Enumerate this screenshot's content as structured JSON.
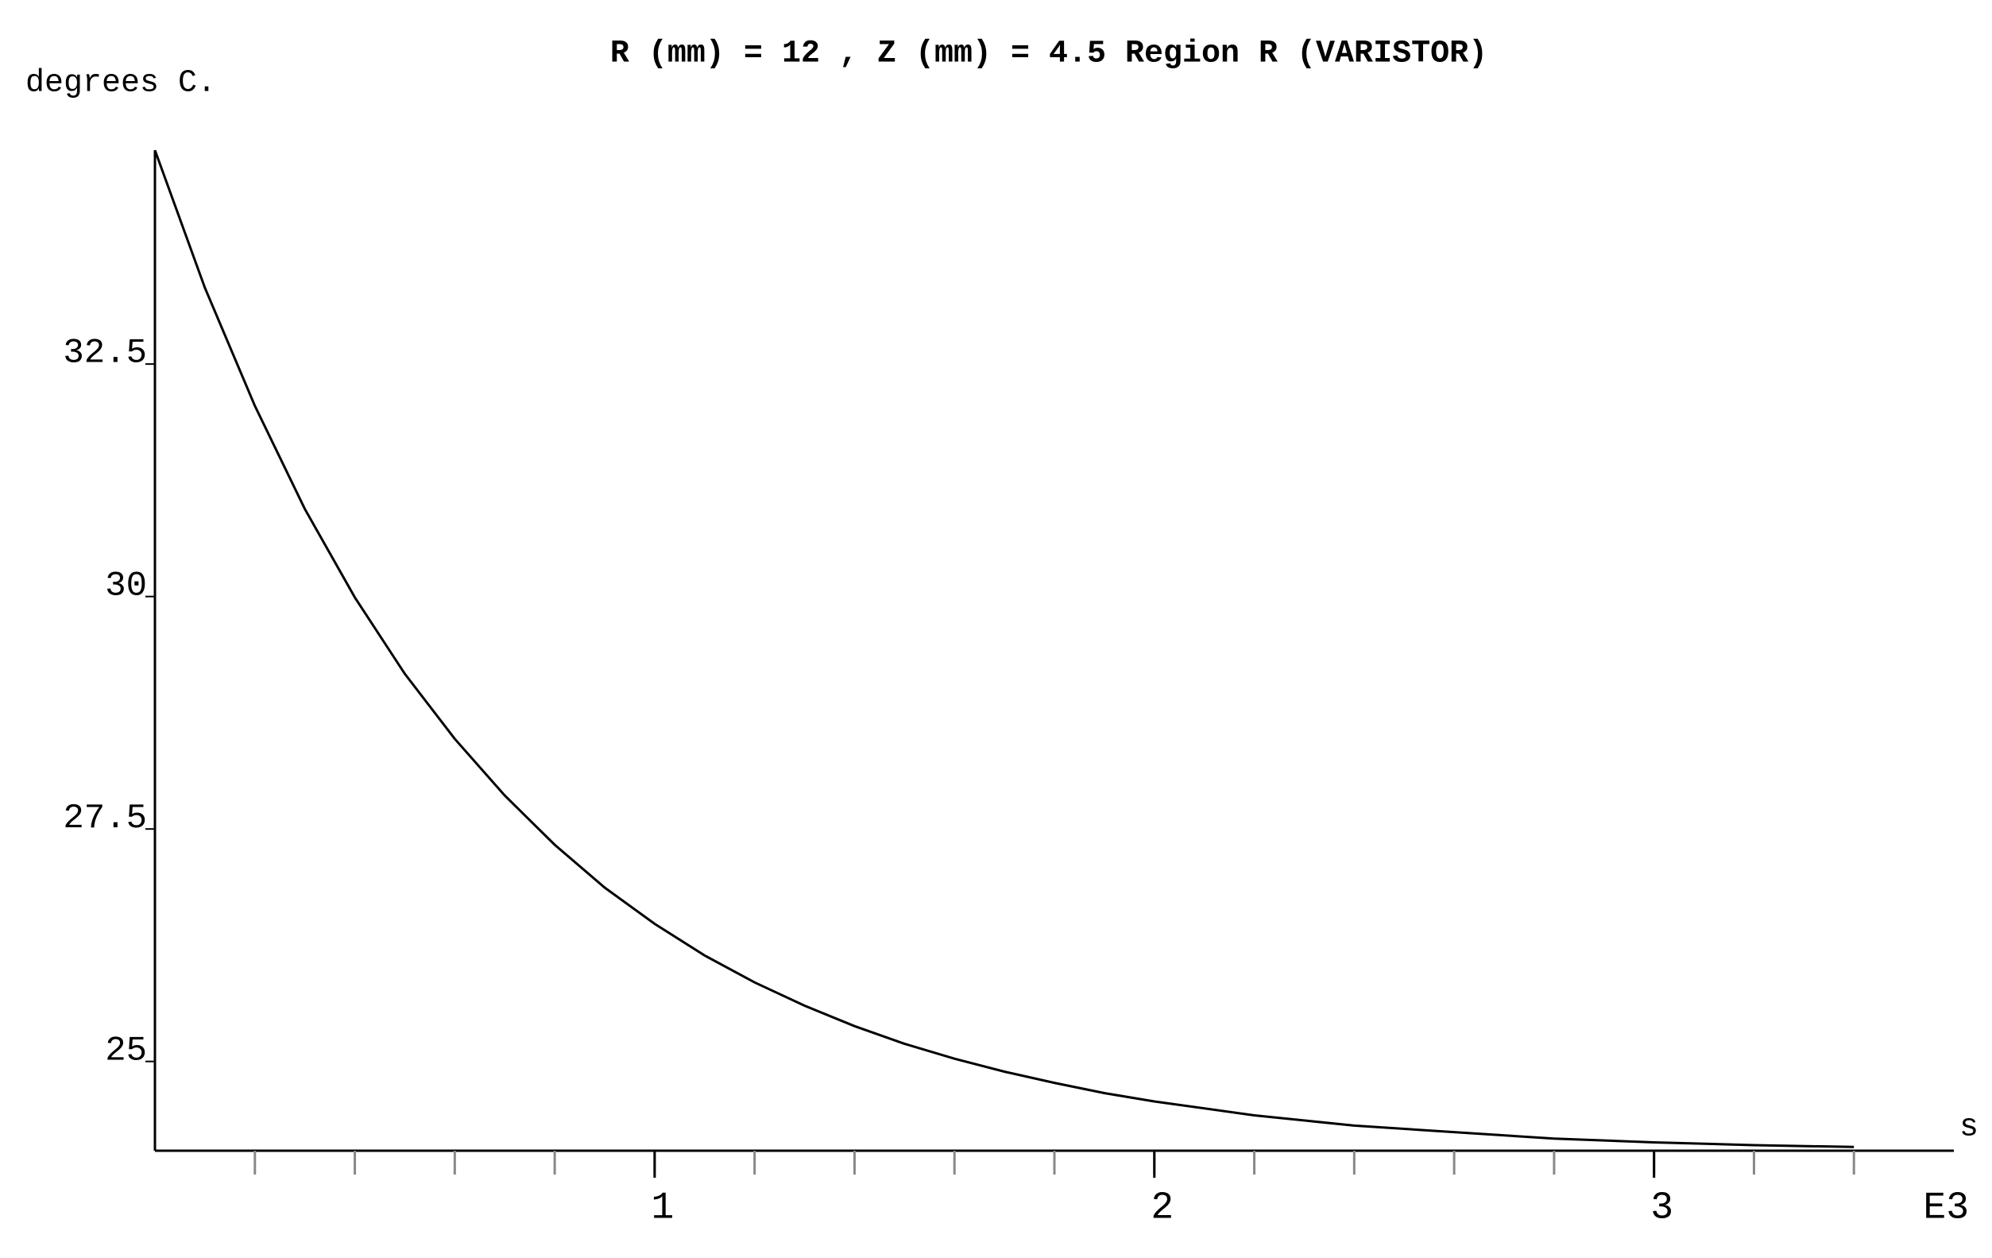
{
  "chart_data": {
    "type": "line",
    "title": "R (mm) = 12 , Z (mm) = 4.5  Region R (VARISTOR)",
    "y_label": "degrees C.",
    "x_label": "s",
    "x_scale_label": "E3",
    "x": [
      0,
      0.1,
      0.2,
      0.3,
      0.4,
      0.5,
      0.6,
      0.7,
      0.8,
      0.9,
      1.0,
      1.1,
      1.2,
      1.3,
      1.4,
      1.5,
      1.6,
      1.7,
      1.8,
      1.9,
      2.0,
      2.2,
      2.4,
      2.6,
      2.8,
      3.0,
      3.2,
      3.4
    ],
    "series": [
      {
        "color": "#000000",
        "values": [
          34.8,
          33.32,
          32.05,
          30.94,
          29.99,
          29.17,
          28.47,
          27.86,
          27.33,
          26.87,
          26.48,
          26.14,
          25.85,
          25.6,
          25.38,
          25.19,
          25.03,
          24.89,
          24.77,
          24.66,
          24.57,
          24.42,
          24.31,
          24.24,
          24.17,
          24.13,
          24.1,
          24.08
        ]
      }
    ],
    "xlim": [
      0,
      3.6
    ],
    "ylim": [
      24.04,
      34.8
    ],
    "xticks": [
      1,
      2,
      3
    ],
    "x_minor_ticks": [
      0.2,
      0.4,
      0.6,
      0.8,
      1,
      1.2,
      1.4,
      1.6,
      1.8,
      2,
      2.2,
      2.4,
      2.6,
      2.8,
      3,
      3.2,
      3.4
    ],
    "yticks": [
      25,
      27.5,
      30,
      32.5
    ]
  }
}
